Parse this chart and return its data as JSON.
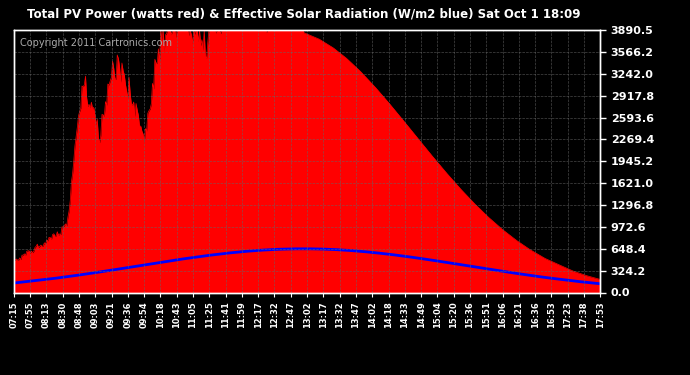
{
  "title": "Total PV Power (watts red) & Effective Solar Radiation (W/m2 blue) Sat Oct 1 18:09",
  "copyright": "Copyright 2011 Cartronics.com",
  "bg_color": "#000000",
  "plot_bg_color": "#000000",
  "grid_color": "#666666",
  "title_color": "#ffffff",
  "ylabel_right_color": "#ffffff",
  "xlabel_color": "#ffffff",
  "yticks": [
    0.0,
    324.2,
    648.4,
    972.6,
    1296.8,
    1621.0,
    1945.2,
    2269.4,
    2593.6,
    2917.8,
    3242.0,
    3566.2,
    3890.5
  ],
  "xlabels": [
    "07:15",
    "07:55",
    "08:13",
    "08:30",
    "08:48",
    "09:03",
    "09:21",
    "09:36",
    "09:54",
    "10:18",
    "10:43",
    "11:05",
    "11:25",
    "11:41",
    "11:59",
    "12:17",
    "12:32",
    "12:47",
    "13:02",
    "13:17",
    "13:32",
    "13:47",
    "14:02",
    "14:18",
    "14:33",
    "14:49",
    "15:04",
    "15:20",
    "15:36",
    "15:51",
    "16:06",
    "16:21",
    "16:36",
    "16:53",
    "17:23",
    "17:38",
    "17:53"
  ],
  "pv_color": "#ff0000",
  "solar_color": "#0000ff",
  "ymax": 3890.5,
  "ymin": 0.0
}
